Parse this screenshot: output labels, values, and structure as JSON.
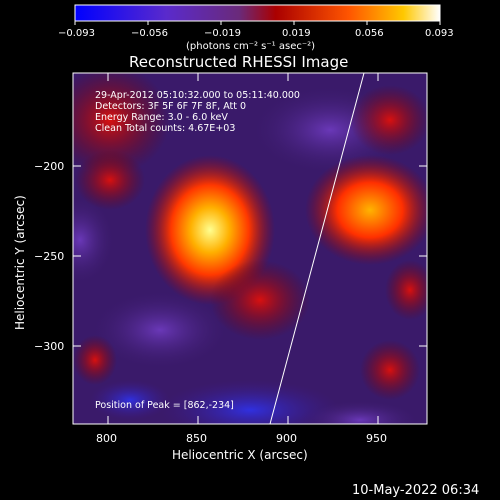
{
  "colorbar": {
    "ticks": [
      "−0.093",
      "−0.056",
      "−0.019",
      "0.019",
      "0.056",
      "0.093"
    ],
    "units": "(photons cm⁻² s⁻¹ asec⁻²)"
  },
  "title": "Reconstructed RHESSI Image",
  "info": {
    "line1": "29-Apr-2012 05:10:32.000 to 05:11:40.000",
    "line2": "Detectors: 3F 5F 6F 7F 8F, Att 0",
    "line3": "Energy Range: 3.0 - 6.0 keV",
    "line4": "Clean     Total counts: 4.67E+03"
  },
  "peak_label": "Position of Peak = [862,-234]",
  "axes": {
    "xlabel": "Heliocentric X (arcsec)",
    "ylabel": "Heliocentric Y (arcsec)",
    "xticks": [
      "800",
      "850",
      "900",
      "950"
    ],
    "yticks": [
      "−200",
      "−250",
      "−300"
    ]
  },
  "footer": "10-May-2022 06:34",
  "colors": {
    "background": "#000000",
    "low": "#1a1aff",
    "mid": "#5a2a9a",
    "high": "#ff2a00",
    "peak": "#ffff80"
  }
}
